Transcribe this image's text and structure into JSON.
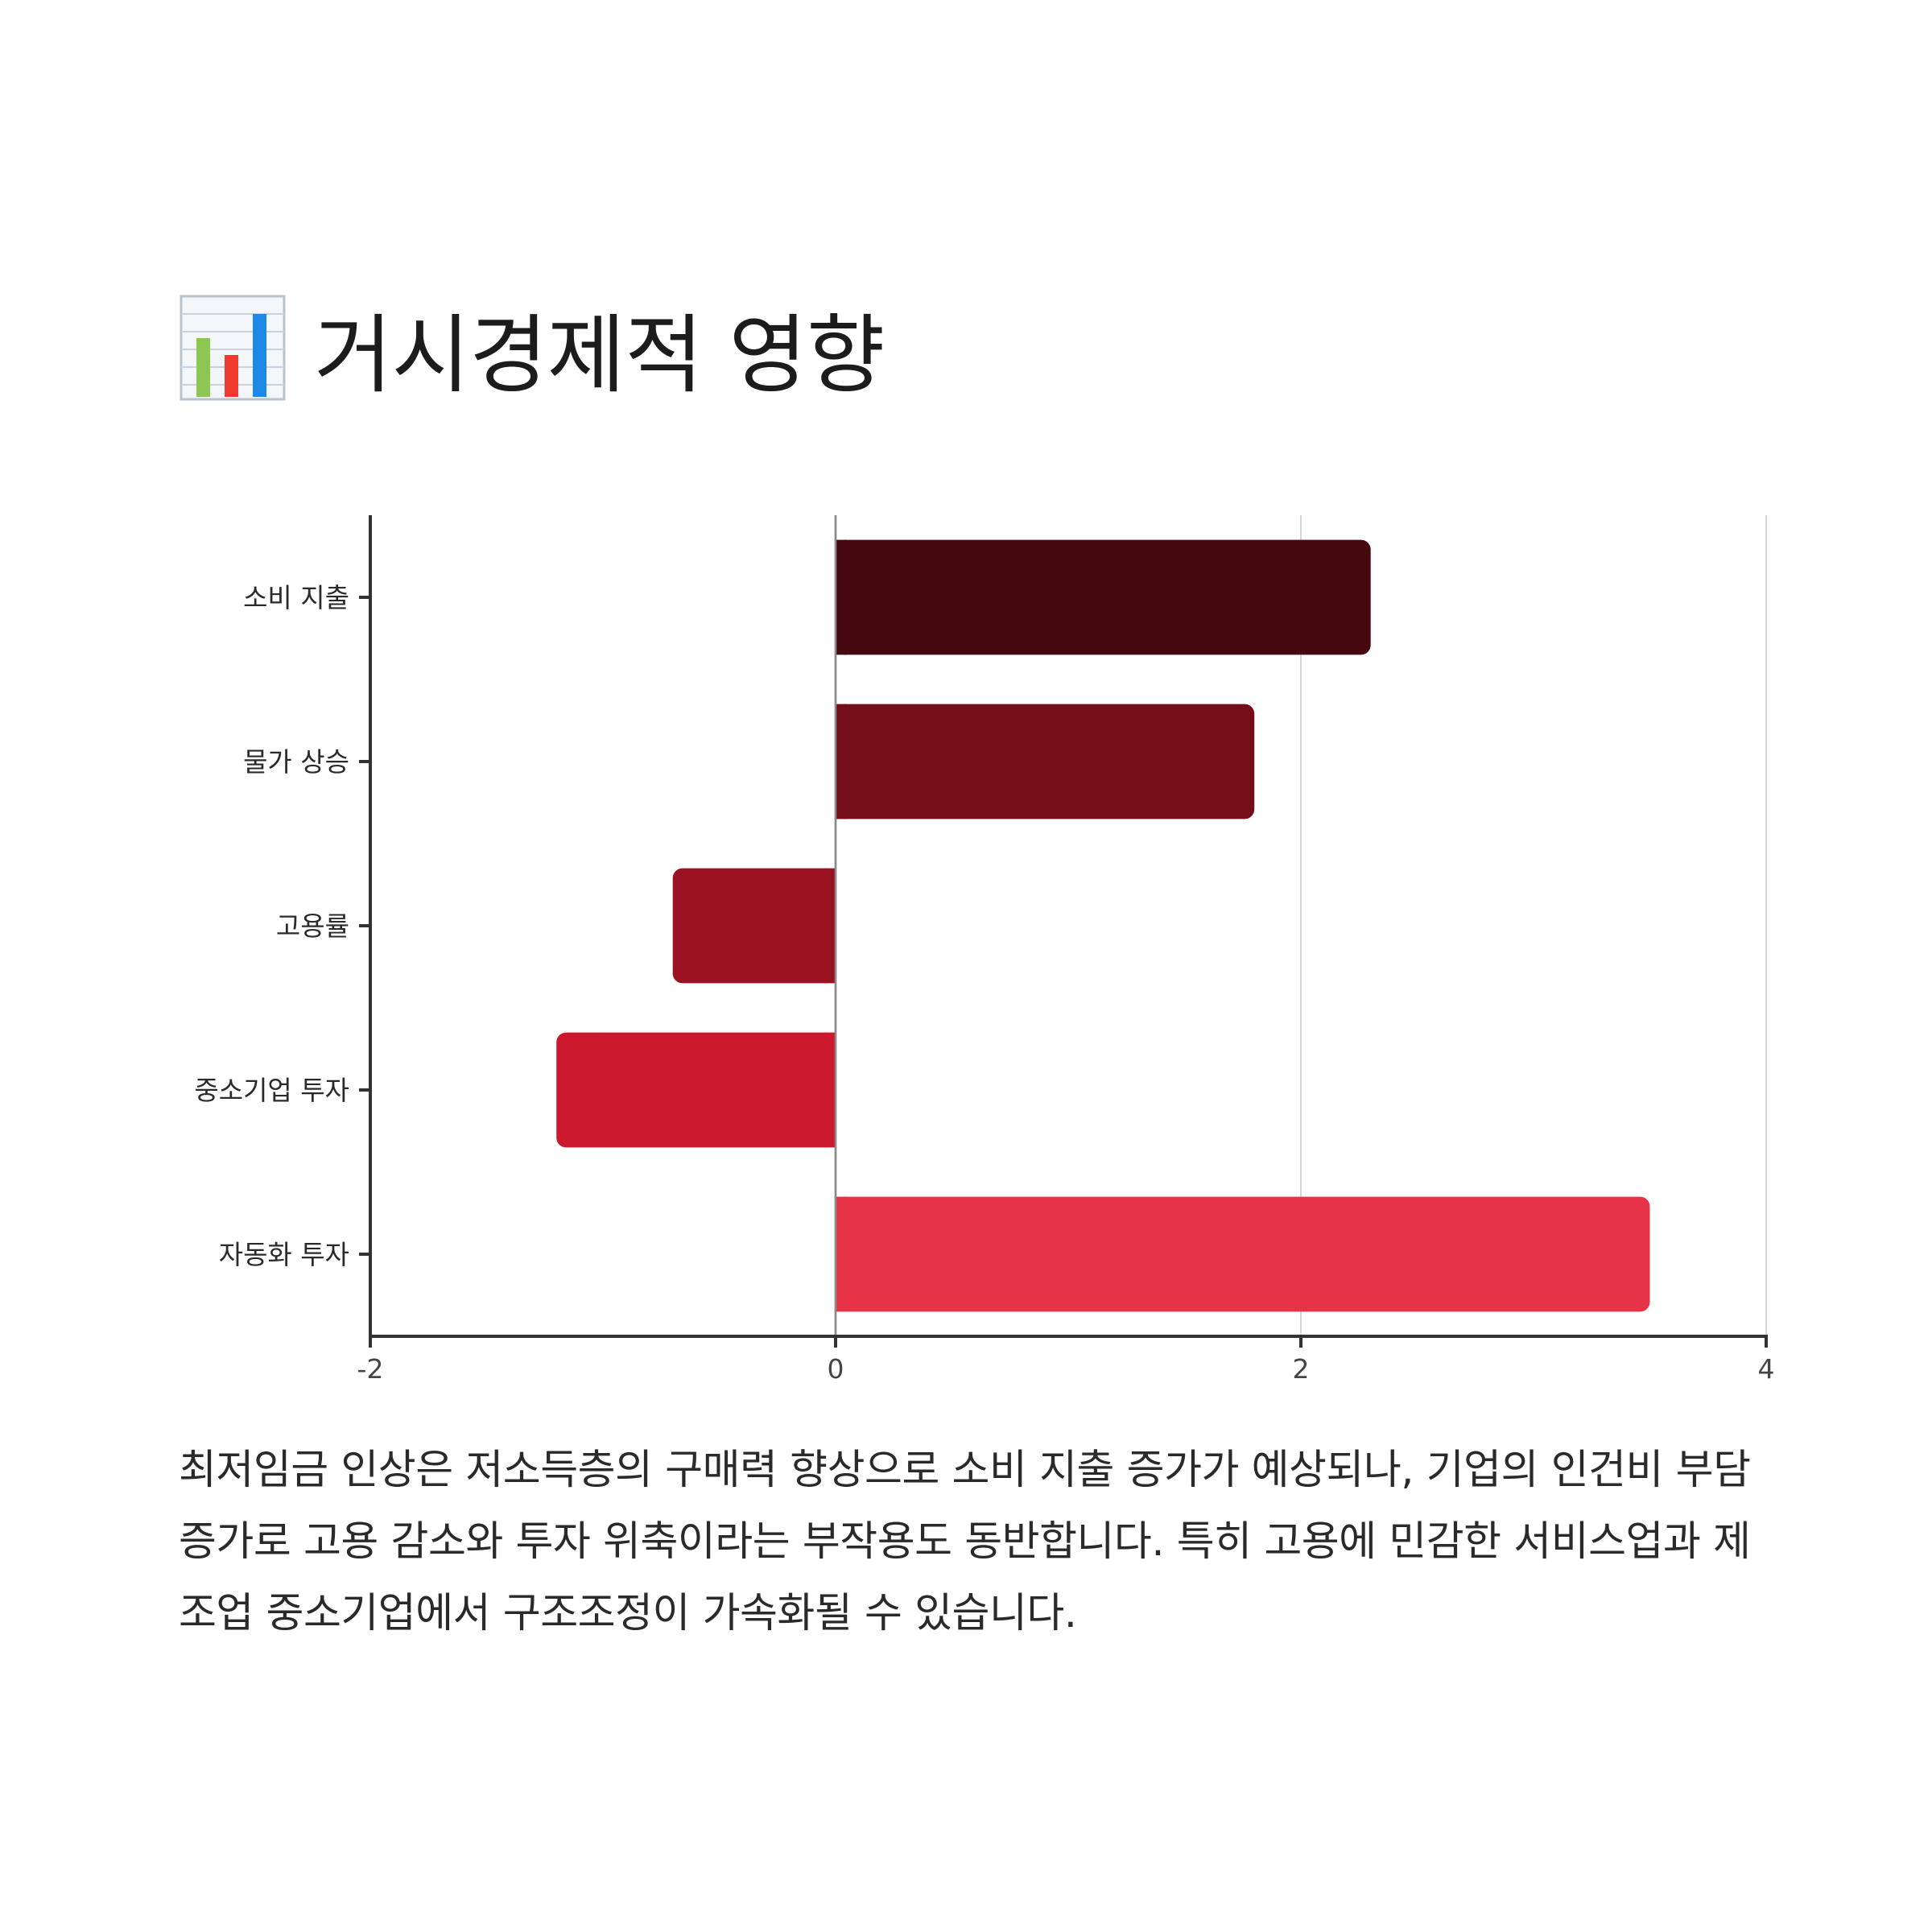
{
  "title": {
    "icon": "bar-chart-icon",
    "text": "거시경제적 영향"
  },
  "chart_data": {
    "type": "bar",
    "orientation": "horizontal",
    "categories": [
      "소비 지출",
      "물가 상승",
      "고용률",
      "중소기업 투자",
      "자동화 투자"
    ],
    "values": [
      2.3,
      1.8,
      -0.7,
      -1.2,
      3.5
    ],
    "colors": [
      "#470910",
      "#730D18",
      "#9B1322",
      "#CB1A2D",
      "#E63347"
    ],
    "xlim": [
      -2,
      4
    ],
    "xticks": [
      "-2",
      "0",
      "2",
      "4"
    ],
    "grid": true
  },
  "description": "최저임금 인상은 저소득층의 구매력 향상으로 소비 지출 증가가 예상되나, 기업의 인건비 부담 증가로 고용 감소와 투자 위축이라는 부작용도 동반합니다. 특히 고용에 민감한 서비스업과 제조업 중소기업에서 구조조정이 가속화될 수 있습니다."
}
